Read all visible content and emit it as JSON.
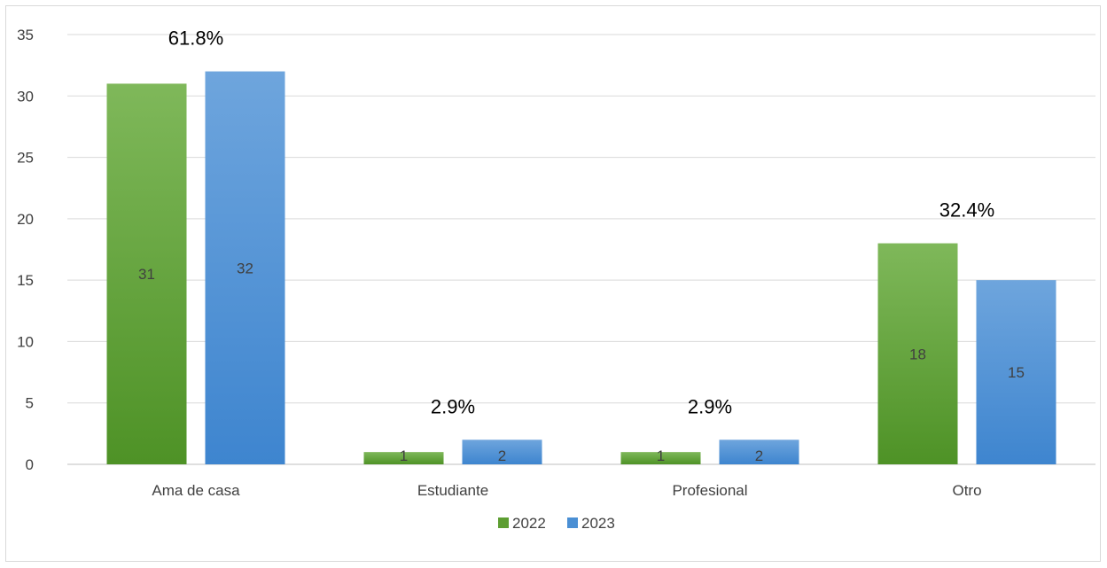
{
  "chart_data": {
    "type": "bar",
    "categories": [
      "Ama de casa",
      "Estudiante",
      "Profesional",
      "Otro"
    ],
    "series": [
      {
        "name": "2022",
        "values": [
          31,
          1,
          1,
          18
        ],
        "color": "#5d9e32"
      },
      {
        "name": "2023",
        "values": [
          32,
          2,
          2,
          15
        ],
        "color": "#4a8fd4"
      }
    ],
    "category_percent_labels": [
      "61.8%",
      "2.9%",
      "2.9%",
      "32.4%"
    ],
    "ylim": [
      0,
      35
    ],
    "y_ticks": [
      0,
      5,
      10,
      15,
      20,
      25,
      30,
      35
    ],
    "grid": true,
    "legend_position": "bottom",
    "title": "",
    "xlabel": "",
    "ylabel": ""
  }
}
